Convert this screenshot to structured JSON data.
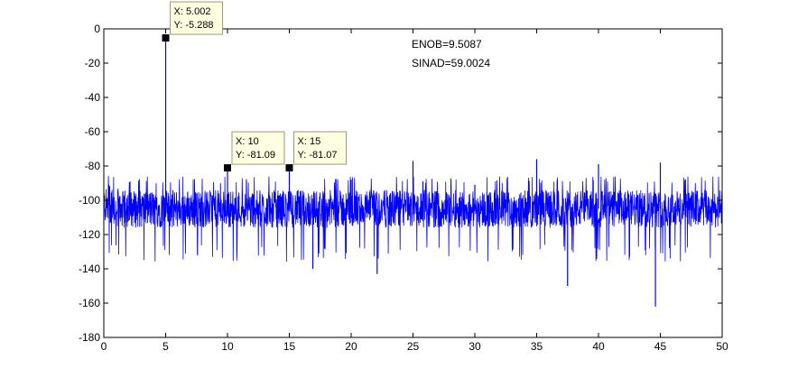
{
  "chart_data": {
    "type": "line",
    "xlim": [
      0,
      50
    ],
    "ylim": [
      -180,
      0
    ],
    "x_ticks": [
      0,
      5,
      10,
      15,
      20,
      25,
      30,
      35,
      40,
      45,
      50
    ],
    "y_ticks": [
      0,
      -20,
      -40,
      -60,
      -80,
      -100,
      -120,
      -140,
      -160,
      -180
    ],
    "grid": false,
    "line_color": "#0000ff",
    "noise_floor": {
      "mean": -105,
      "spread_low": -126,
      "spread_high": -90
    },
    "spurs": [
      {
        "x": 5.002,
        "y": -5.288
      },
      {
        "x": 10,
        "y": -81.09
      },
      {
        "x": 15,
        "y": -81.07
      },
      {
        "x": 20,
        "y": -88
      },
      {
        "x": 25,
        "y": -77
      },
      {
        "x": 30,
        "y": -91
      },
      {
        "x": 35,
        "y": -76
      },
      {
        "x": 40,
        "y": -79
      },
      {
        "x": 45,
        "y": -78
      }
    ],
    "dips": [
      {
        "x": 22.1,
        "y": -143
      },
      {
        "x": 37.5,
        "y": -150
      },
      {
        "x": 44.6,
        "y": -162
      },
      {
        "x": 16.9,
        "y": -140
      }
    ],
    "annotations": [
      {
        "text": "ENOB=9.5087"
      },
      {
        "text": "SINAD=59.0024"
      }
    ],
    "datatips": [
      {
        "x": 5.002,
        "y": -5.288,
        "x_text": "X: 5.002",
        "y_text": "Y: -5.288"
      },
      {
        "x": 10,
        "y": -81.09,
        "x_text": "X: 10",
        "y_text": "Y: -81.09"
      },
      {
        "x": 15,
        "y": -81.07,
        "x_text": "X: 15",
        "y_text": "Y: -81.07"
      }
    ]
  }
}
